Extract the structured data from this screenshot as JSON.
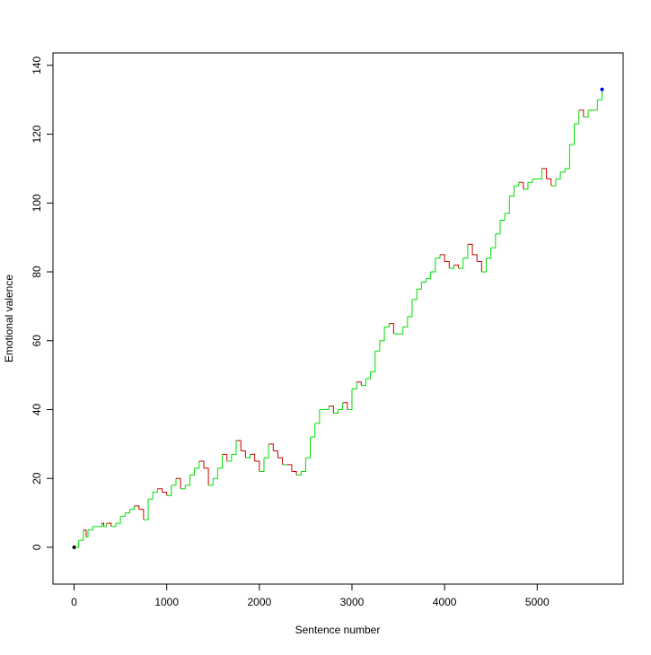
{
  "chart_data": {
    "type": "step",
    "x_label": "Sentence number",
    "y_label": "Emotional valence",
    "xlim": [
      -228,
      5928
    ],
    "ylim": [
      -10.7,
      143.6
    ],
    "xticks": [
      0,
      1000,
      2000,
      3000,
      4000,
      5000
    ],
    "yticks": [
      0,
      20,
      40,
      60,
      80,
      100,
      120,
      140
    ],
    "up_color": "#00dd00",
    "down_color": "#cc0000",
    "start_color": "#000000",
    "end_color": "#0000ff",
    "series": [
      {
        "x": [
          0,
          50,
          100,
          130,
          150,
          200,
          300,
          320,
          350,
          400,
          450,
          500,
          550,
          600,
          650,
          700,
          750,
          780,
          800,
          850,
          900,
          950,
          1000,
          1050,
          1100,
          1150,
          1200,
          1250,
          1300,
          1350,
          1400,
          1450,
          1500,
          1550,
          1600,
          1650,
          1700,
          1750,
          1800,
          1850,
          1900,
          1950,
          2000,
          2050,
          2100,
          2150,
          2200,
          2250,
          2300,
          2350,
          2400,
          2450,
          2500,
          2550,
          2600,
          2650,
          2700,
          2750,
          2800,
          2850,
          2900,
          2950,
          3000,
          3050,
          3100,
          3150,
          3200,
          3250,
          3300,
          3350,
          3400,
          3450,
          3500,
          3550,
          3600,
          3650,
          3700,
          3750,
          3800,
          3850,
          3900,
          3950,
          4000,
          4050,
          4100,
          4150,
          4200,
          4250,
          4300,
          4350,
          4400,
          4450,
          4500,
          4550,
          4600,
          4650,
          4700,
          4750,
          4800,
          4850,
          4900,
          4950,
          5000,
          5050,
          5100,
          5150,
          5200,
          5250,
          5300,
          5350,
          5400,
          5450,
          5500,
          5550,
          5600,
          5650,
          5700
        ],
        "values": [
          0,
          2,
          5,
          3,
          5,
          6,
          7,
          6,
          7,
          6,
          7,
          9,
          10,
          11,
          12,
          11,
          8,
          8,
          14,
          16,
          17,
          16,
          15,
          18,
          20,
          17,
          18,
          21,
          23,
          25,
          23,
          18,
          20,
          23,
          27,
          25,
          27,
          31,
          28,
          26,
          27,
          25,
          22,
          26,
          30,
          28,
          26,
          24,
          24,
          22,
          21,
          22,
          26,
          32,
          36,
          40,
          40,
          41,
          39,
          40,
          42,
          40,
          46,
          48,
          47,
          49,
          51,
          57,
          60,
          64,
          65,
          62,
          62,
          64,
          67,
          72,
          75,
          77,
          78,
          80,
          84,
          85,
          83,
          81,
          82,
          81,
          84,
          88,
          85,
          83,
          80,
          84,
          87,
          91,
          95,
          97,
          102,
          105,
          106,
          104,
          106,
          107,
          107,
          110,
          107,
          105,
          107,
          109,
          110,
          117,
          123,
          127,
          125,
          127,
          127,
          130,
          133
        ]
      }
    ]
  }
}
